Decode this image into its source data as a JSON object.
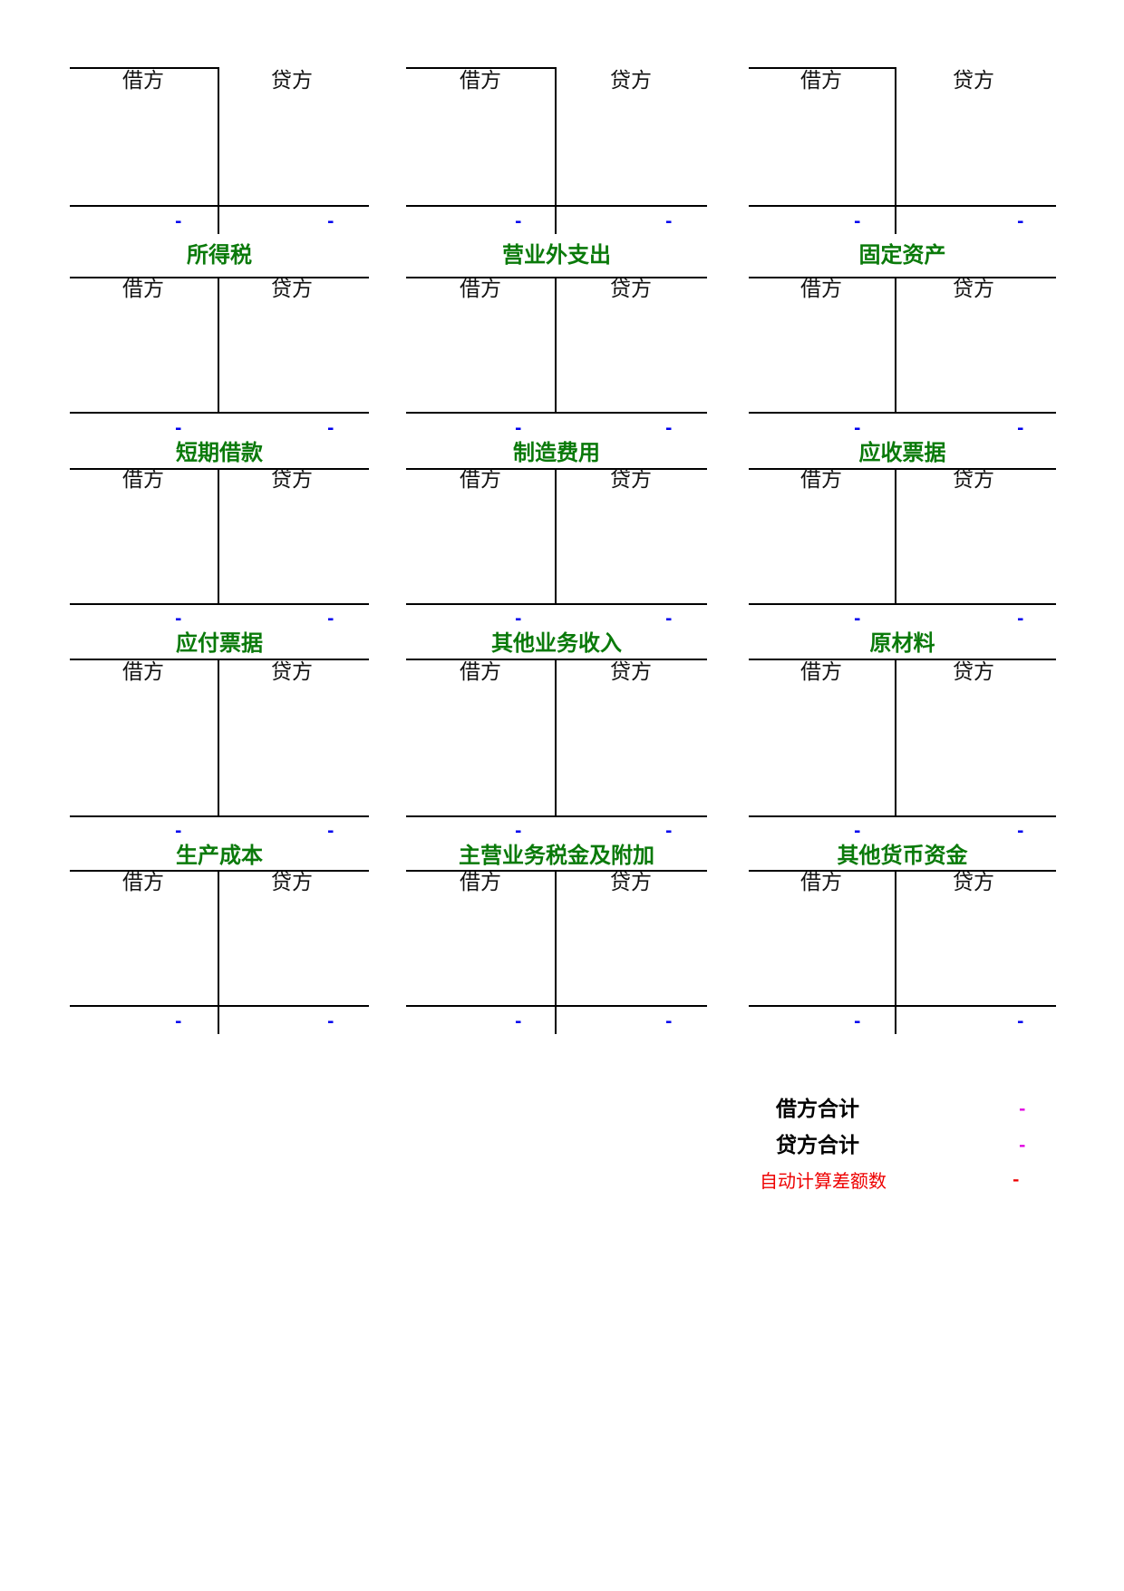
{
  "ledger": {
    "debit_label": "借方",
    "credit_label": "贷方",
    "accounts": [
      {
        "title": "",
        "debit_total": "-",
        "credit_total": "-"
      },
      {
        "title": "",
        "debit_total": "-",
        "credit_total": "-"
      },
      {
        "title": "",
        "debit_total": "-",
        "credit_total": "-"
      },
      {
        "title": "所得税",
        "debit_total": "-",
        "credit_total": "-"
      },
      {
        "title": "营业外支出",
        "debit_total": "-",
        "credit_total": "-"
      },
      {
        "title": "固定资产",
        "debit_total": "-",
        "credit_total": "-"
      },
      {
        "title": "短期借款",
        "debit_total": "-",
        "credit_total": "-"
      },
      {
        "title": "制造费用",
        "debit_total": "-",
        "credit_total": "-"
      },
      {
        "title": "应收票据",
        "debit_total": "-",
        "credit_total": "-"
      },
      {
        "title": "应付票据",
        "debit_total": "-",
        "credit_total": "-"
      },
      {
        "title": "其他业务收入",
        "debit_total": "-",
        "credit_total": "-"
      },
      {
        "title": "原材料",
        "debit_total": "-",
        "credit_total": "-"
      },
      {
        "title": "生产成本",
        "debit_total": "-",
        "credit_total": "-"
      },
      {
        "title": "主营业务税金及附加",
        "debit_total": "-",
        "credit_total": "-"
      },
      {
        "title": "其他货币资金",
        "debit_total": "-",
        "credit_total": "-"
      }
    ]
  },
  "summary": {
    "debit_total_label": "借方合计",
    "debit_total_value": "-",
    "credit_total_label": "贷方合计",
    "credit_total_value": "-",
    "difference_label": "自动计算差额数",
    "difference_value": "-",
    "value_color": "#e000e0",
    "difference_color": "#ee0000"
  }
}
